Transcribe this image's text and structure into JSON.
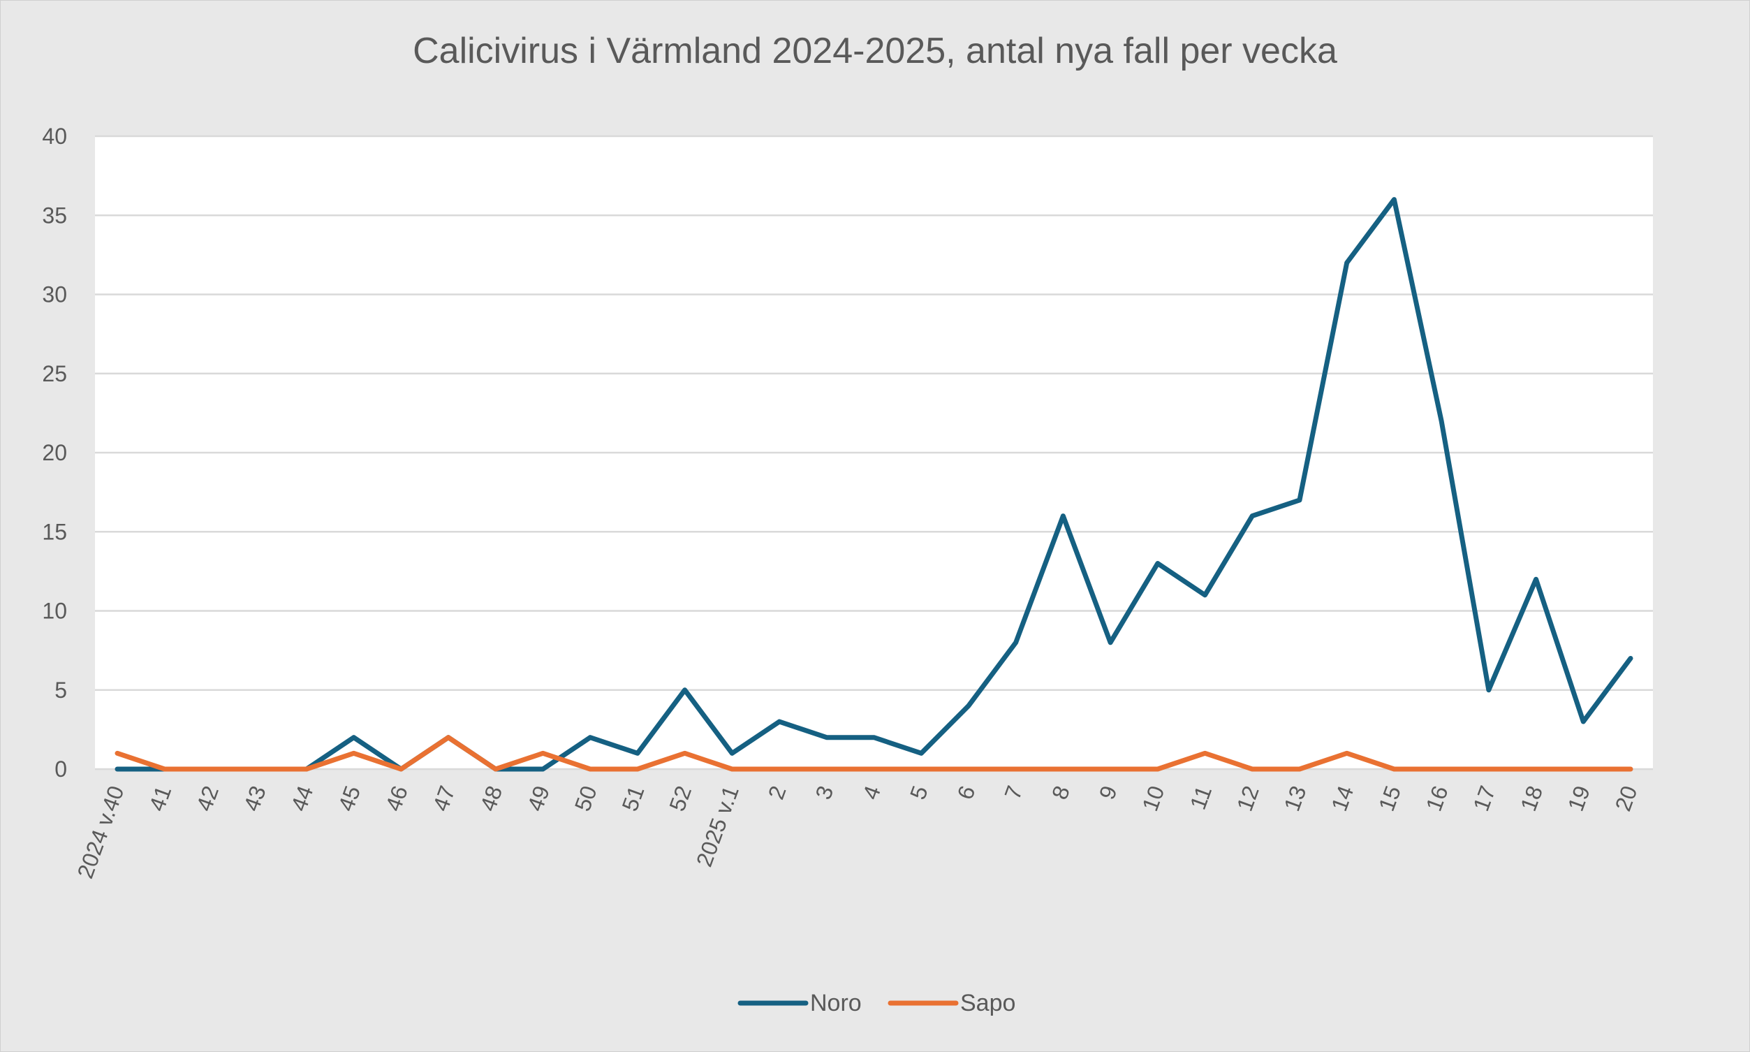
{
  "chart_data": {
    "type": "line",
    "title": "Calicivirus i Värmland 2024-2025, antal nya fall per vecka",
    "xlabel": "",
    "ylabel": "",
    "ylim": [
      0,
      40
    ],
    "yticks": [
      0,
      5,
      10,
      15,
      20,
      25,
      30,
      35,
      40
    ],
    "grid": true,
    "legend_position": "bottom",
    "categories": [
      "2024 v.40",
      "41",
      "42",
      "43",
      "44",
      "45",
      "46",
      "47",
      "48",
      "49",
      "50",
      "51",
      "52",
      "2025 v.1",
      "2",
      "3",
      "4",
      "5",
      "6",
      "7",
      "8",
      "9",
      "10",
      "11",
      "12",
      "13",
      "14",
      "15",
      "16",
      "17",
      "18",
      "19",
      "20"
    ],
    "series": [
      {
        "name": "Noro",
        "color": "#156082",
        "values": [
          0,
          0,
          0,
          0,
          0,
          2,
          0,
          2,
          0,
          0,
          2,
          1,
          5,
          1,
          3,
          2,
          2,
          1,
          4,
          8,
          16,
          8,
          13,
          11,
          16,
          17,
          32,
          36,
          22,
          5,
          12,
          3,
          7
        ]
      },
      {
        "name": "Sapo",
        "color": "#E97132",
        "values": [
          1,
          0,
          0,
          0,
          0,
          1,
          0,
          2,
          0,
          1,
          0,
          0,
          1,
          0,
          0,
          0,
          0,
          0,
          0,
          0,
          0,
          0,
          0,
          1,
          0,
          0,
          1,
          0,
          0,
          0,
          0,
          0,
          0
        ]
      }
    ]
  }
}
